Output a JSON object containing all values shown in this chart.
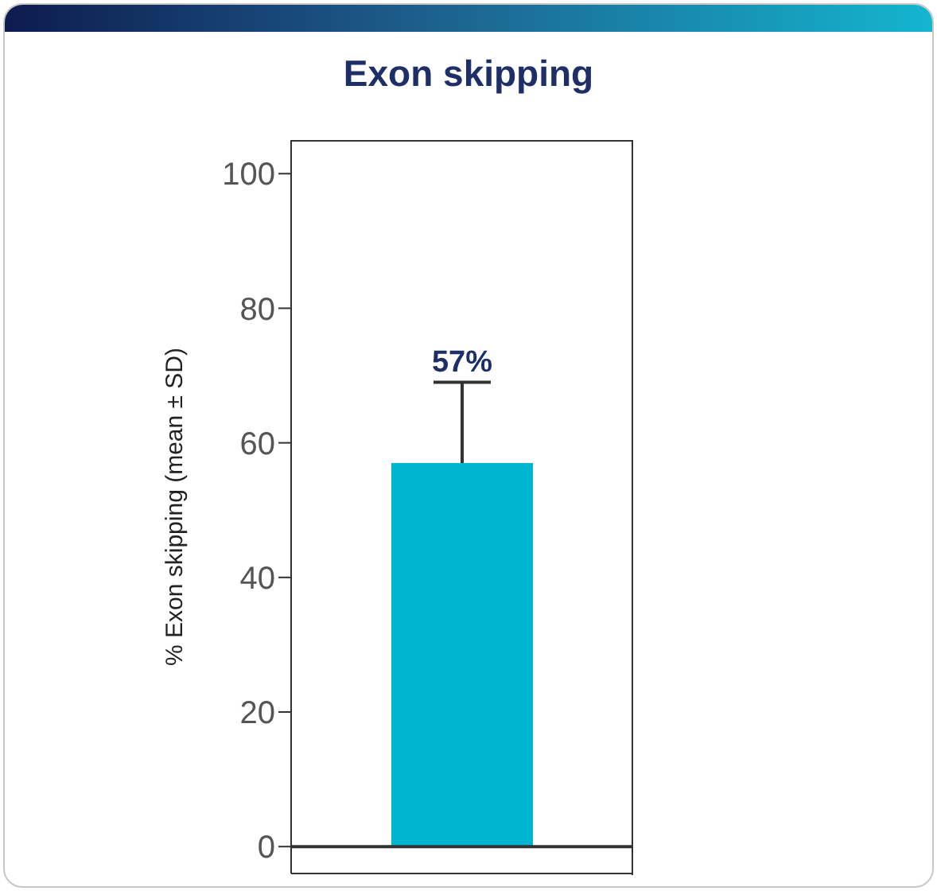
{
  "chart_data": {
    "type": "bar",
    "title": "Exon skipping",
    "ylabel": "% Exon skipping (mean ± SD)",
    "categories": [
      null
    ],
    "values": [
      57
    ],
    "color": "#00b5cf",
    "errors": [
      [
        57,
        69
      ]
    ],
    "value_labels": [
      "57%"
    ],
    "ylim": [
      -4,
      105
    ],
    "yticks": [
      0,
      20,
      40,
      60,
      80,
      100
    ],
    "ref_lines": [
      {
        "axis": "y",
        "value": 0,
        "color": "#333333"
      }
    ],
    "grid": false,
    "legend": false
  }
}
